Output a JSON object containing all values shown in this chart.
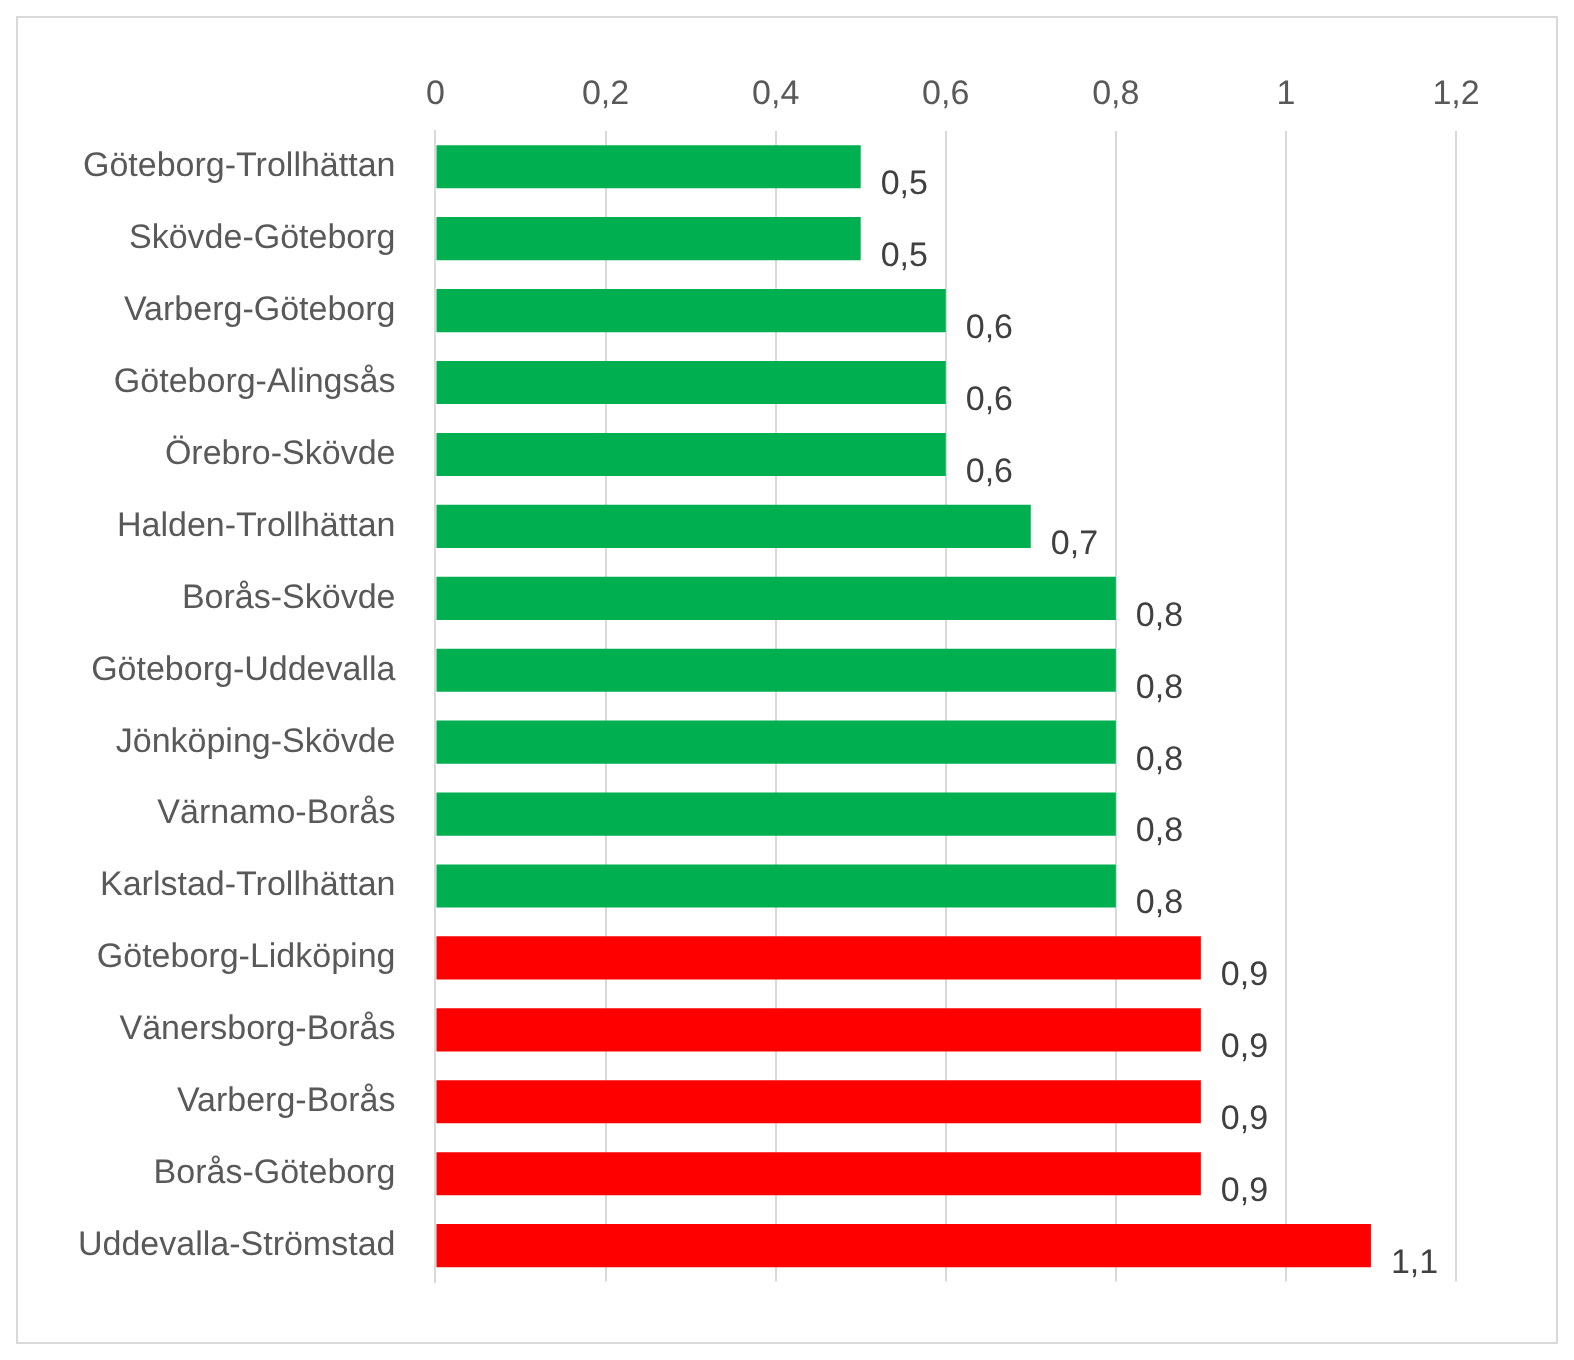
{
  "chart_data": {
    "type": "bar",
    "orientation": "horizontal",
    "categories": [
      "Göteborg-Trollhättan",
      "Skövde-Göteborg",
      "Varberg-Göteborg",
      "Göteborg-Alingsås",
      "Örebro-Skövde",
      "Halden-Trollhättan",
      "Borås-Skövde",
      "Göteborg-Uddevalla",
      "Jönköping-Skövde",
      "Värnamo-Borås",
      "Karlstad-Trollhättan",
      "Göteborg-Lidköping",
      "Vänersborg-Borås",
      "Varberg-Borås",
      "Borås-Göteborg",
      "Uddevalla-Strömstad"
    ],
    "values": [
      0.5,
      0.5,
      0.6,
      0.6,
      0.6,
      0.7,
      0.8,
      0.8,
      0.8,
      0.8,
      0.8,
      0.9,
      0.9,
      0.9,
      0.9,
      1.1
    ],
    "colors": [
      "#00b050",
      "#00b050",
      "#00b050",
      "#00b050",
      "#00b050",
      "#00b050",
      "#00b050",
      "#00b050",
      "#00b050",
      "#00b050",
      "#00b050",
      "#ff0000",
      "#ff0000",
      "#ff0000",
      "#ff0000",
      "#ff0000"
    ],
    "value_labels": [
      "0,5",
      "0,5",
      "0,6",
      "0,6",
      "0,6",
      "0,7",
      "0,8",
      "0,8",
      "0,8",
      "0,8",
      "0,8",
      "0,9",
      "0,9",
      "0,9",
      "0,9",
      "1,1"
    ],
    "xlim": [
      0,
      1.2
    ],
    "xticks": [
      0,
      {
        "value": 0.2,
        "label": "0,2"
      },
      {
        "value": 0.4,
        "label": "0,4"
      },
      {
        "value": 0.6,
        "label": "0,6"
      },
      {
        "value": 0.8,
        "label": "0,8"
      },
      1,
      {
        "value": 1.2,
        "label": "1,2"
      }
    ],
    "grid": "x",
    "legend": false
  }
}
